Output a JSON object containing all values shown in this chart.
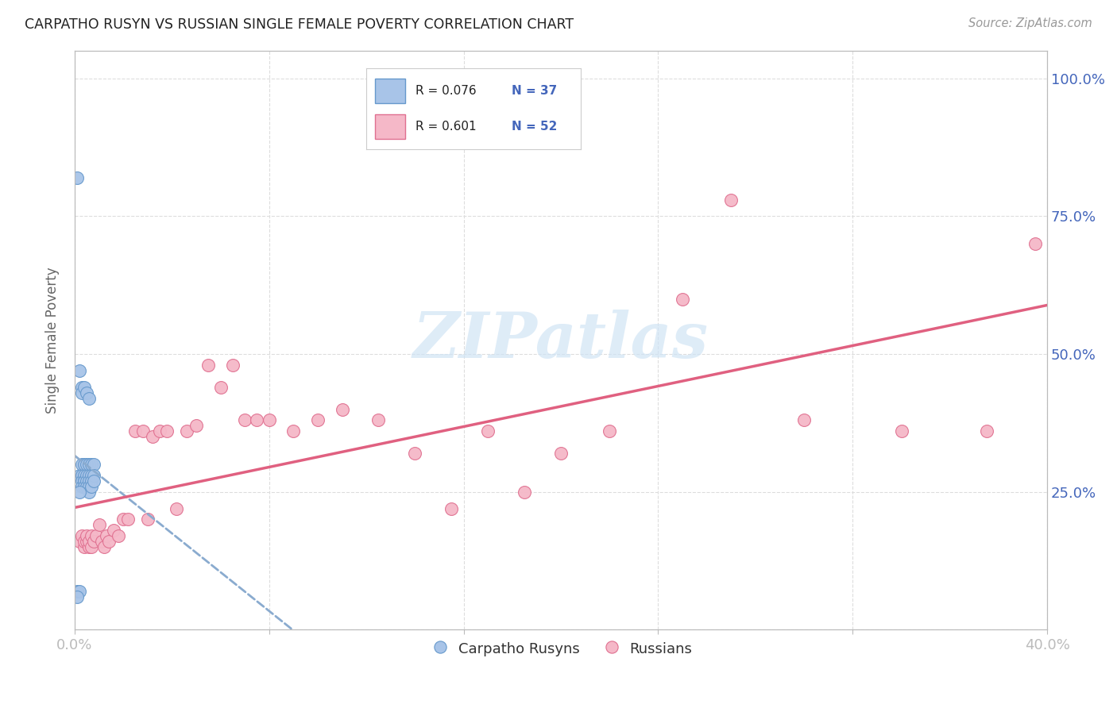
{
  "title": "CARPATHO RUSYN VS RUSSIAN SINGLE FEMALE POVERTY CORRELATION CHART",
  "source": "Source: ZipAtlas.com",
  "ylabel": "Single Female Poverty",
  "xlim": [
    0.0,
    0.4
  ],
  "ylim": [
    0.0,
    1.05
  ],
  "xtick_positions": [
    0.0,
    0.08,
    0.16,
    0.24,
    0.32,
    0.4
  ],
  "xticklabels": [
    "0.0%",
    "",
    "",
    "",
    "",
    "40.0%"
  ],
  "ytick_positions": [
    0.0,
    0.25,
    0.5,
    0.75,
    1.0
  ],
  "yticklabels_right": [
    "",
    "25.0%",
    "50.0%",
    "75.0%",
    "100.0%"
  ],
  "blue_fill": "#a8c4e8",
  "blue_edge": "#6699cc",
  "pink_fill": "#f5b8c8",
  "pink_edge": "#e07090",
  "blue_line_color": "#8aabcf",
  "pink_line_color": "#e06080",
  "watermark_text": "ZIPatlas",
  "watermark_color": "#d0e4f5",
  "legend_R_blue": "R = 0.076",
  "legend_N_blue": "N = 37",
  "legend_R_pink": "R = 0.601",
  "legend_N_pink": "N = 52",
  "blue_N_color": "#4466bb",
  "pink_N_color": "#cc3366",
  "background_color": "#ffffff",
  "grid_color": "#dddddd",
  "title_color": "#222222",
  "right_tick_color": "#4466bb",
  "x_tick_color": "#4466bb",
  "carpatho_x": [
    0.002,
    0.003,
    0.003,
    0.003,
    0.003,
    0.004,
    0.004,
    0.004,
    0.004,
    0.004,
    0.005,
    0.005,
    0.005,
    0.005,
    0.006,
    0.006,
    0.006,
    0.006,
    0.006,
    0.007,
    0.007,
    0.007,
    0.007,
    0.008,
    0.008,
    0.008,
    0.001,
    0.002,
    0.002,
    0.003,
    0.003,
    0.004,
    0.005,
    0.006,
    0.001,
    0.002,
    0.001
  ],
  "carpatho_y": [
    0.28,
    0.3,
    0.28,
    0.27,
    0.26,
    0.3,
    0.28,
    0.27,
    0.27,
    0.26,
    0.3,
    0.28,
    0.27,
    0.26,
    0.3,
    0.28,
    0.27,
    0.26,
    0.25,
    0.3,
    0.28,
    0.27,
    0.26,
    0.3,
    0.28,
    0.27,
    0.82,
    0.47,
    0.25,
    0.44,
    0.43,
    0.44,
    0.43,
    0.42,
    0.07,
    0.07,
    0.06
  ],
  "russian_x": [
    0.002,
    0.003,
    0.004,
    0.004,
    0.005,
    0.005,
    0.006,
    0.006,
    0.007,
    0.007,
    0.008,
    0.009,
    0.01,
    0.011,
    0.012,
    0.013,
    0.014,
    0.016,
    0.018,
    0.02,
    0.022,
    0.025,
    0.028,
    0.03,
    0.032,
    0.035,
    0.038,
    0.042,
    0.046,
    0.05,
    0.055,
    0.06,
    0.065,
    0.07,
    0.075,
    0.08,
    0.09,
    0.1,
    0.11,
    0.125,
    0.14,
    0.155,
    0.17,
    0.185,
    0.2,
    0.22,
    0.25,
    0.27,
    0.3,
    0.34,
    0.375,
    0.395
  ],
  "russian_y": [
    0.16,
    0.17,
    0.15,
    0.16,
    0.16,
    0.17,
    0.15,
    0.16,
    0.17,
    0.15,
    0.16,
    0.17,
    0.19,
    0.16,
    0.15,
    0.17,
    0.16,
    0.18,
    0.17,
    0.2,
    0.2,
    0.36,
    0.36,
    0.2,
    0.35,
    0.36,
    0.36,
    0.22,
    0.36,
    0.37,
    0.48,
    0.44,
    0.48,
    0.38,
    0.38,
    0.38,
    0.36,
    0.38,
    0.4,
    0.38,
    0.32,
    0.22,
    0.36,
    0.25,
    0.32,
    0.36,
    0.6,
    0.78,
    0.38,
    0.36,
    0.36,
    0.7
  ]
}
